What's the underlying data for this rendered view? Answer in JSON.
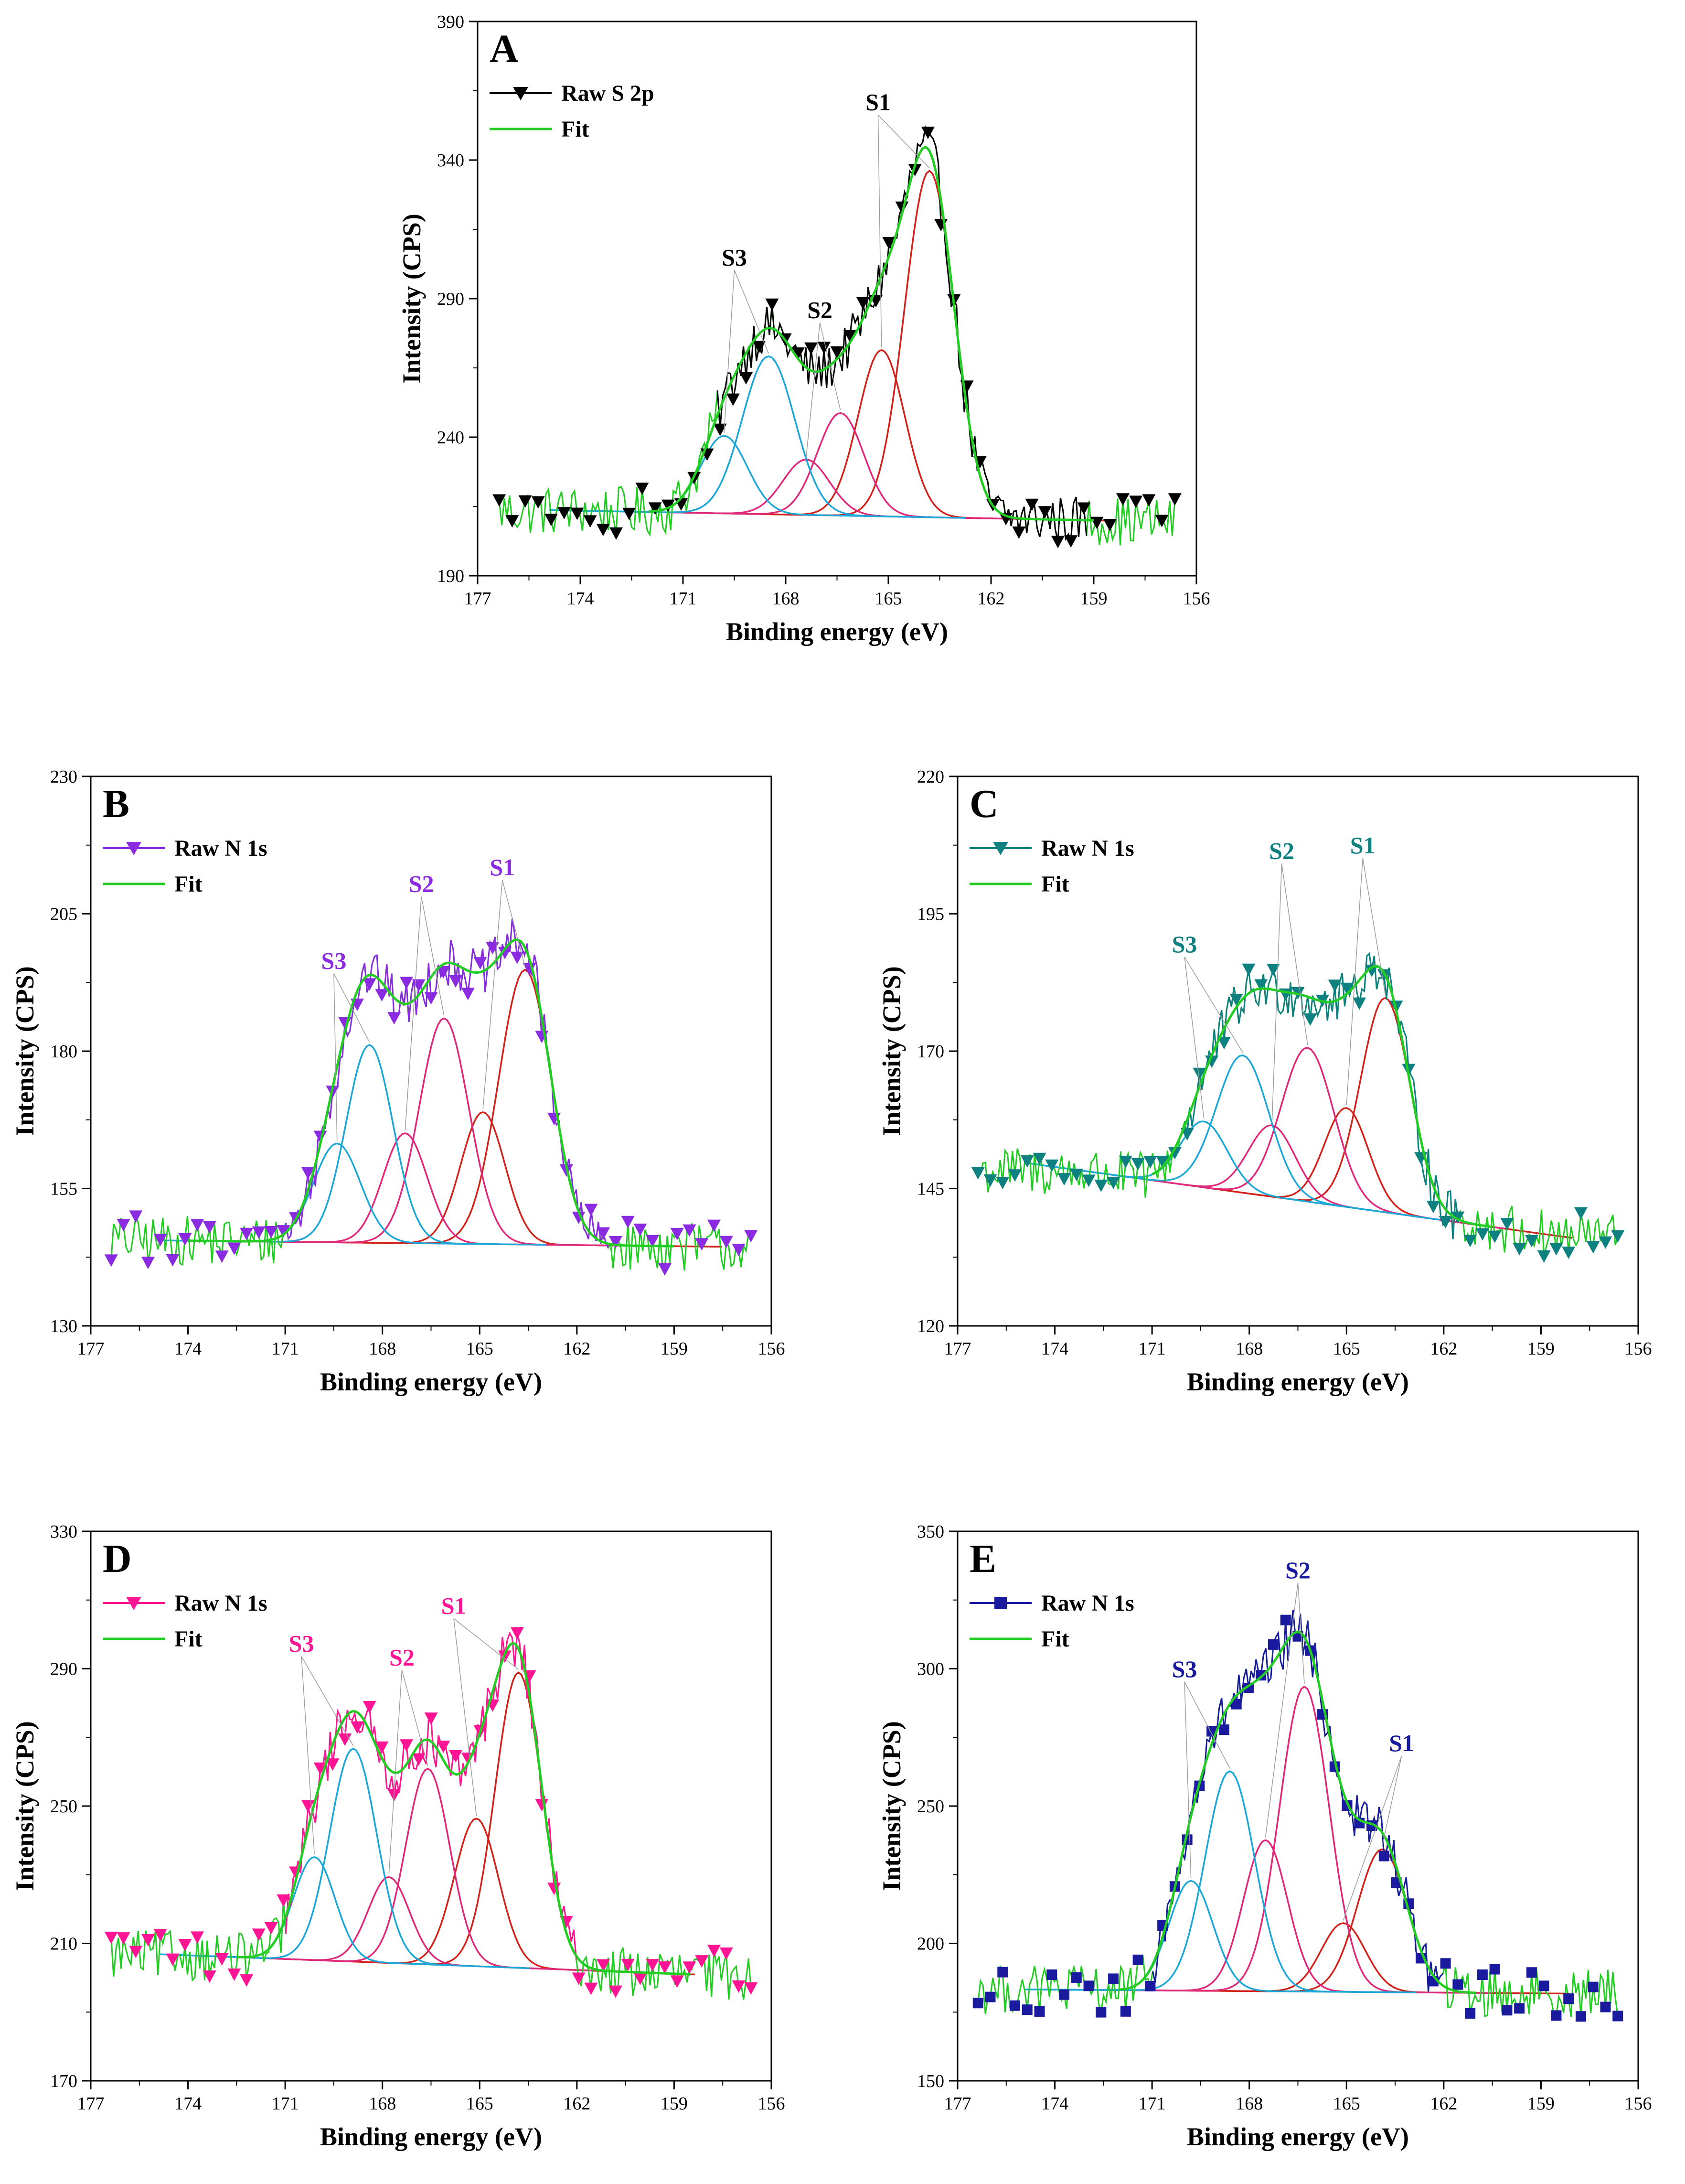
{
  "chart_data": [
    {
      "panel": "A",
      "type": "line",
      "xlabel": "Binding energy (eV)",
      "ylabel": "Intensity (CPS)",
      "xlim": [
        177,
        156
      ],
      "ylim": [
        190,
        390
      ],
      "xticks": [
        177,
        174,
        171,
        168,
        165,
        162,
        159,
        156
      ],
      "yticks": [
        190,
        240,
        290,
        340,
        390
      ],
      "raw_color": "#000000",
      "raw_marker": "triangle-down",
      "legend": [
        {
          "label": "Raw S 2p"
        },
        {
          "label": "Fit"
        }
      ],
      "background": {
        "x": [
          172,
          159
        ],
        "y": [
          213,
          210
        ]
      },
      "raw_range": [
        170,
        159.2
      ],
      "peaks": [
        {
          "label": "S1",
          "color": "#d0221a",
          "center": 163.8,
          "height": 125,
          "fwhm": 1.7
        },
        {
          "label": "",
          "color": "#d0221a",
          "center": 165.2,
          "height": 60,
          "fwhm": 1.6
        },
        {
          "label": "S2",
          "color": "#e0287a",
          "center": 166.4,
          "height": 37,
          "fwhm": 1.6
        },
        {
          "label": "",
          "color": "#e0287a",
          "center": 167.4,
          "height": 20,
          "fwhm": 1.6
        },
        {
          "label": "S3",
          "color": "#1ba6d8",
          "center": 168.5,
          "height": 57,
          "fwhm": 1.8
        },
        {
          "label": "",
          "color": "#1ba6d8",
          "center": 169.8,
          "height": 28,
          "fwhm": 1.6
        }
      ],
      "peak_labels": [
        {
          "text": "S1",
          "x": 165.3,
          "y": 358
        },
        {
          "text": "S2",
          "x": 167.0,
          "y": 283
        },
        {
          "text": "S3",
          "x": 169.5,
          "y": 302
        }
      ]
    },
    {
      "panel": "B",
      "type": "line",
      "xlabel": "Binding energy (eV)",
      "ylabel": "Intensity (CPS)",
      "xlim": [
        177,
        156
      ],
      "ylim": [
        130,
        230
      ],
      "xticks": [
        177,
        174,
        171,
        168,
        165,
        162,
        159,
        156
      ],
      "yticks": [
        130,
        155,
        180,
        205,
        230
      ],
      "raw_color": "#8a2be2",
      "raw_marker": "triangle-down",
      "legend": [
        {
          "label": "Raw N 1s"
        },
        {
          "label": "Fit"
        }
      ],
      "background": {
        "x": [
          174,
          159
        ],
        "y": [
          145.5,
          144.5
        ]
      },
      "raw_range": [
        171,
        161
      ],
      "peaks": [
        {
          "label": "S1",
          "color": "#d0221a",
          "center": 163.6,
          "height": 50,
          "fwhm": 1.9
        },
        {
          "label": "",
          "color": "#d0221a",
          "center": 164.9,
          "height": 24,
          "fwhm": 1.6
        },
        {
          "label": "S2",
          "color": "#e0287a",
          "center": 166.1,
          "height": 41,
          "fwhm": 1.8
        },
        {
          "label": "",
          "color": "#e0287a",
          "center": 167.3,
          "height": 20,
          "fwhm": 1.6
        },
        {
          "label": "S3",
          "color": "#1ba6d8",
          "center": 168.4,
          "height": 36,
          "fwhm": 1.7
        },
        {
          "label": "",
          "color": "#1ba6d8",
          "center": 169.4,
          "height": 18,
          "fwhm": 1.7
        }
      ],
      "peak_labels": [
        {
          "text": "S1",
          "x": 164.3,
          "y": 212
        },
        {
          "text": "S2",
          "x": 166.8,
          "y": 209
        },
        {
          "text": "S3",
          "x": 169.5,
          "y": 195
        }
      ]
    },
    {
      "panel": "C",
      "type": "line",
      "xlabel": "Binding energy (eV)",
      "ylabel": "Intensity (CPS)",
      "xlim": [
        177,
        156
      ],
      "ylim": [
        120,
        220
      ],
      "xticks": [
        177,
        174,
        171,
        168,
        165,
        162,
        159,
        156
      ],
      "yticks": [
        120,
        145,
        170,
        195,
        220
      ],
      "raw_color": "#0f8080",
      "raw_marker": "triangle-down",
      "legend": [
        {
          "label": "Raw N 1s"
        },
        {
          "label": "Fit"
        }
      ],
      "background": {
        "x": [
          171,
          160.5
        ],
        "y": [
          146.5,
          138
        ]
      },
      "raw_range": [
        170,
        161.5
      ],
      "peaks": [
        {
          "label": "S1",
          "color": "#d0221a",
          "center": 163.8,
          "height": 39,
          "fwhm": 1.8
        },
        {
          "label": "",
          "color": "#d0221a",
          "center": 165.0,
          "height": 18,
          "fwhm": 1.6
        },
        {
          "label": "S2",
          "color": "#e0287a",
          "center": 166.2,
          "height": 28,
          "fwhm": 1.9
        },
        {
          "label": "",
          "color": "#e0287a",
          "center": 167.3,
          "height": 13,
          "fwhm": 1.7
        },
        {
          "label": "S3",
          "color": "#1ba6d8",
          "center": 168.2,
          "height": 25,
          "fwhm": 1.9
        },
        {
          "label": "",
          "color": "#1ba6d8",
          "center": 169.4,
          "height": 12,
          "fwhm": 1.7
        }
      ],
      "peak_labels": [
        {
          "text": "S1",
          "x": 164.5,
          "y": 206
        },
        {
          "text": "S2",
          "x": 167.0,
          "y": 205
        },
        {
          "text": "S3",
          "x": 170.0,
          "y": 188
        }
      ]
    },
    {
      "panel": "D",
      "type": "line",
      "xlabel": "Binding energy (eV)",
      "ylabel": "Intensity (CPS)",
      "xlim": [
        177,
        156
      ],
      "ylim": [
        170,
        330
      ],
      "xticks": [
        177,
        174,
        171,
        168,
        165,
        162,
        159,
        156
      ],
      "yticks": [
        170,
        210,
        250,
        290,
        330
      ],
      "raw_color": "#ff1493",
      "raw_marker": "triangle-down",
      "legend": [
        {
          "label": "Raw N 1s"
        },
        {
          "label": "Fit"
        }
      ],
      "background": {
        "x": [
          172.5,
          158.5
        ],
        "y": [
          206,
          201
        ]
      },
      "raw_range": [
        171,
        162
      ],
      "peaks": [
        {
          "label": "S1",
          "color": "#d0221a",
          "center": 163.8,
          "height": 86,
          "fwhm": 1.7
        },
        {
          "label": "",
          "color": "#d0221a",
          "center": 165.1,
          "height": 43,
          "fwhm": 1.6
        },
        {
          "label": "S2",
          "color": "#e0287a",
          "center": 166.6,
          "height": 57,
          "fwhm": 1.6
        },
        {
          "label": "",
          "color": "#e0287a",
          "center": 167.8,
          "height": 25,
          "fwhm": 1.5
        },
        {
          "label": "S3",
          "color": "#1ba6d8",
          "center": 168.9,
          "height": 62,
          "fwhm": 1.7
        },
        {
          "label": "",
          "color": "#1ba6d8",
          "center": 170.1,
          "height": 30,
          "fwhm": 1.5
        }
      ],
      "peak_labels": [
        {
          "text": "S1",
          "x": 165.8,
          "y": 306
        },
        {
          "text": "S2",
          "x": 167.4,
          "y": 291
        },
        {
          "text": "S3",
          "x": 170.5,
          "y": 295
        }
      ]
    },
    {
      "panel": "E",
      "type": "line",
      "xlabel": "Binding energy (eV)",
      "ylabel": "Intensity (CPS)",
      "xlim": [
        177,
        156
      ],
      "ylim": [
        150,
        350
      ],
      "xticks": [
        177,
        174,
        171,
        168,
        165,
        162,
        159,
        156
      ],
      "yticks": [
        150,
        200,
        250,
        300,
        350
      ],
      "raw_color": "#1a1a9e",
      "raw_marker": "square",
      "legend": [
        {
          "label": "Raw N 1s"
        },
        {
          "label": "Fit"
        }
      ],
      "background": {
        "x": [
          172,
          161
        ],
        "y": [
          183,
          182
        ]
      },
      "raw_range": [
        171,
        162
      ],
      "peaks": [
        {
          "label": "S1",
          "color": "#d0221a",
          "center": 163.9,
          "height": 52,
          "fwhm": 1.8
        },
        {
          "label": "",
          "color": "#d0221a",
          "center": 165.1,
          "height": 25,
          "fwhm": 1.6
        },
        {
          "label": "S2",
          "color": "#e0287a",
          "center": 166.3,
          "height": 111,
          "fwhm": 1.8
        },
        {
          "label": "",
          "color": "#e0287a",
          "center": 167.5,
          "height": 55,
          "fwhm": 1.6
        },
        {
          "label": "S3",
          "color": "#1ba6d8",
          "center": 168.6,
          "height": 80,
          "fwhm": 1.8
        },
        {
          "label": "",
          "color": "#1ba6d8",
          "center": 169.8,
          "height": 40,
          "fwhm": 1.6
        }
      ],
      "peak_labels": [
        {
          "text": "S1",
          "x": 163.3,
          "y": 270
        },
        {
          "text": "S2",
          "x": 166.5,
          "y": 333
        },
        {
          "text": "S3",
          "x": 170.0,
          "y": 297
        }
      ]
    }
  ]
}
